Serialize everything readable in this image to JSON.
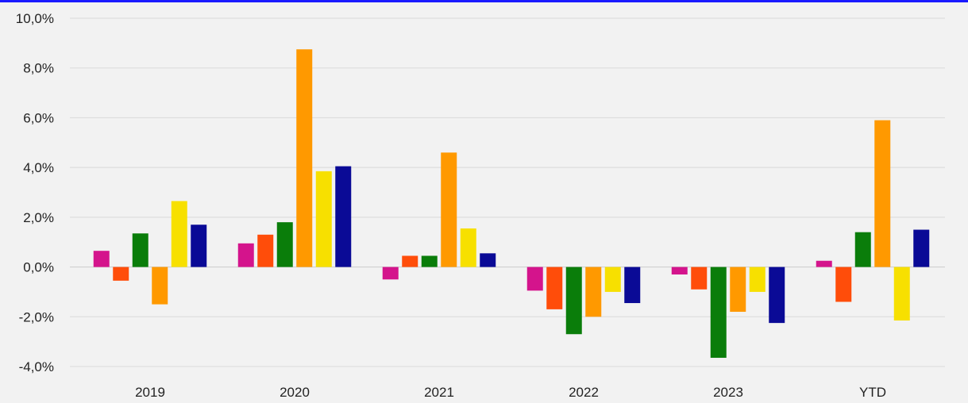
{
  "chart_data": {
    "type": "bar",
    "title": "",
    "xlabel": "",
    "ylabel": "",
    "categories": [
      "2019",
      "2020",
      "2021",
      "2022",
      "2023",
      "YTD"
    ],
    "ylim": [
      -4.0,
      10.0
    ],
    "yticks": [
      -4.0,
      -2.0,
      0.0,
      2.0,
      4.0,
      6.0,
      8.0,
      10.0
    ],
    "ytick_labels": [
      "-4,0%",
      "-2,0%",
      "0,0%",
      "2,0%",
      "4,0%",
      "6,0%",
      "8,0%",
      "10,0%"
    ],
    "value_unit": "%",
    "grid": true,
    "legend": "none",
    "series": [
      {
        "color": "#d4148c",
        "values": [
          0.65,
          0.95,
          -0.5,
          -0.95,
          -0.3,
          0.25
        ]
      },
      {
        "color": "#ff4d0a",
        "values": [
          -0.55,
          1.3,
          0.45,
          -1.7,
          -0.9,
          -1.4
        ]
      },
      {
        "color": "#0a7d0a",
        "values": [
          1.35,
          1.8,
          0.45,
          -2.7,
          -3.65,
          1.4
        ]
      },
      {
        "color": "#ff9900",
        "values": [
          -1.5,
          8.75,
          4.6,
          -2.0,
          -1.8,
          5.9
        ]
      },
      {
        "color": "#f7e000",
        "values": [
          2.65,
          3.85,
          1.55,
          -1.0,
          -1.0,
          -2.15
        ]
      },
      {
        "color": "#0a0a96",
        "values": [
          1.7,
          4.05,
          0.55,
          -1.45,
          -2.25,
          1.5
        ]
      }
    ]
  }
}
